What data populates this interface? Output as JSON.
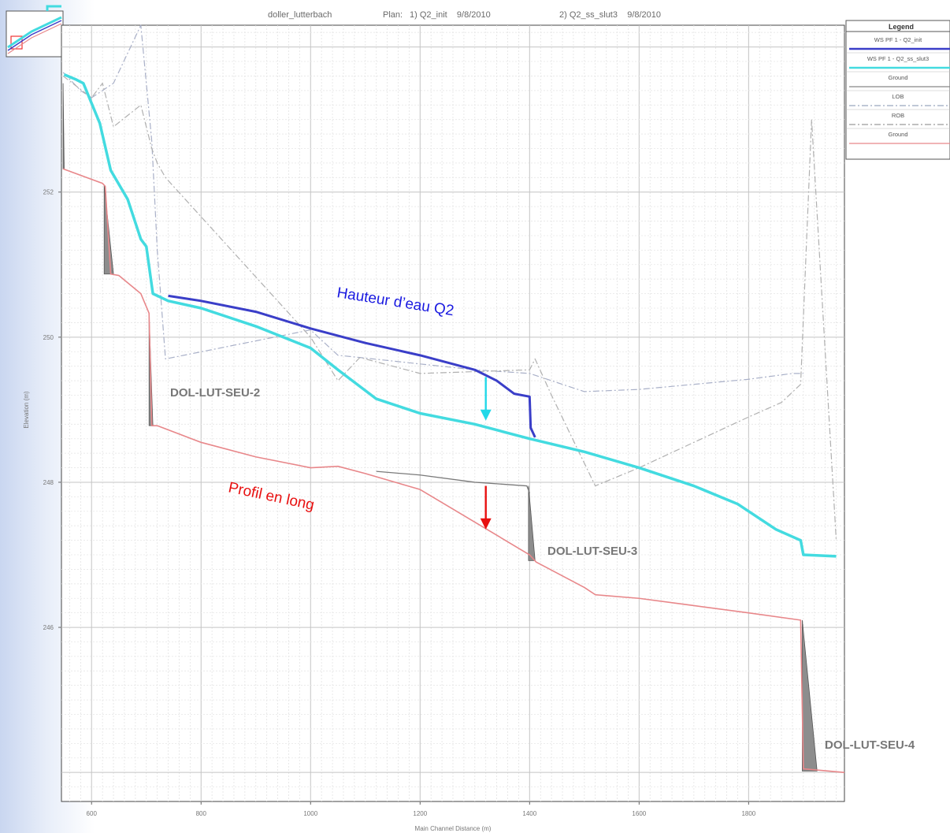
{
  "chart_data": {
    "type": "line",
    "title": {
      "project": "doller_lutterbach",
      "plan_label": "Plan:",
      "plan1": "1) Q2_init    9/8/2010",
      "plan2": "2) Q2_ss_slut3    9/8/2010"
    },
    "xlabel": "Main Channel Distance (m)",
    "ylabel": "Elevation (m)",
    "xlim": [
      545,
      1975
    ],
    "ylim": [
      243.6,
      254.3
    ],
    "x_ticks": [
      600,
      800,
      1000,
      1200,
      1400,
      1600,
      1800
    ],
    "y_ticks": [
      246,
      248,
      250,
      252
    ],
    "grid": true,
    "legend_position": "top-right",
    "legend": {
      "title": "Legend",
      "entries": [
        {
          "label": "WS  PF 1 - Q2_init",
          "color": "#3a3ec8",
          "style": "solid"
        },
        {
          "label": "WS  PF 1 - Q2_ss_slut3",
          "color": "#43dbe0",
          "style": "solid"
        },
        {
          "label": "Ground",
          "color": "#888888",
          "style": "solid"
        },
        {
          "label": "LOB",
          "color": "#9aa6bf",
          "style": "dashdot"
        },
        {
          "label": "ROB",
          "color": "#9a9a9a",
          "style": "dashdot"
        },
        {
          "label": "Ground",
          "color": "#e8878a",
          "style": "solid"
        }
      ]
    },
    "series": [
      {
        "name": "WS  PF 1 - Q2_init",
        "color": "#3a3ec8",
        "width": 3,
        "x": [
          740,
          800,
          900,
          1000,
          1100,
          1200,
          1300,
          1340,
          1372,
          1400,
          1402,
          1410
        ],
        "y": [
          250.57,
          250.5,
          250.35,
          250.12,
          249.92,
          249.75,
          249.55,
          249.4,
          249.22,
          249.18,
          248.75,
          248.62
        ]
      },
      {
        "name": "WS  PF 1 - Q2_ss_slut3",
        "color": "#43dbe0",
        "width": 3.5,
        "x": [
          550,
          572,
          585,
          615,
          635,
          666,
          690,
          700,
          712,
          740,
          800,
          900,
          1000,
          1050,
          1120,
          1200,
          1300,
          1350,
          1400,
          1500,
          1600,
          1700,
          1780,
          1850,
          1895,
          1900,
          1960
        ],
        "y": [
          253.62,
          253.55,
          253.5,
          252.95,
          252.3,
          251.9,
          251.35,
          251.25,
          250.6,
          250.5,
          250.4,
          250.15,
          249.85,
          249.55,
          249.15,
          248.95,
          248.8,
          248.7,
          248.6,
          248.42,
          248.2,
          247.95,
          247.7,
          247.35,
          247.2,
          247.0,
          246.98
        ]
      },
      {
        "name": "Ground",
        "color": "#e8878a",
        "width": 1.6,
        "x": [
          548,
          620,
          625,
          635,
          650,
          690,
          705,
          710,
          720,
          800,
          900,
          1000,
          1050,
          1100,
          1200,
          1300,
          1400,
          1412,
          1500,
          1520,
          1600,
          1700,
          1800,
          1895,
          1900,
          1945,
          1975
        ],
        "y": [
          252.32,
          252.12,
          252.08,
          250.87,
          250.85,
          250.6,
          250.33,
          248.78,
          248.78,
          248.55,
          248.35,
          248.2,
          248.22,
          248.12,
          247.9,
          247.45,
          247.0,
          246.9,
          246.55,
          246.45,
          246.4,
          246.3,
          246.2,
          246.1,
          244.05,
          244.02,
          244.0
        ]
      },
      {
        "name": "LOB",
        "color": "#a9b0c8",
        "width": 1.2,
        "dash": "8 3 2 3",
        "x": [
          548,
          580,
          600,
          640,
          690,
          710,
          720,
          735,
          1000,
          1050,
          1090,
          1300,
          1400,
          1500,
          1600,
          1700,
          1800,
          1880,
          1900
        ],
        "y": [
          253.65,
          253.4,
          253.3,
          253.5,
          254.3,
          252.7,
          251.2,
          249.7,
          250.1,
          249.75,
          249.72,
          249.55,
          249.5,
          249.25,
          249.28,
          249.35,
          249.42,
          249.5,
          249.5
        ]
      },
      {
        "name": "ROB",
        "color": "#b0b0b0",
        "width": 1.2,
        "dash": "8 3 2 3",
        "x": [
          548,
          600,
          620,
          640,
          690,
          710,
          720,
          735,
          1000,
          1050,
          1090,
          1200,
          1400,
          1410,
          1440,
          1520,
          1600,
          1700,
          1800,
          1860,
          1895,
          1915,
          1960
        ],
        "y": [
          253.6,
          253.3,
          253.5,
          252.9,
          253.2,
          252.6,
          252.4,
          252.2,
          250.0,
          249.4,
          249.72,
          249.5,
          249.55,
          249.7,
          249.2,
          247.95,
          248.2,
          248.55,
          248.9,
          249.1,
          249.35,
          253.0,
          247.2
        ]
      },
      {
        "name": "Ground",
        "color": "#7a7a7a",
        "width": 1.3,
        "x": [
          1120,
          1200,
          1300,
          1395,
          1400
        ],
        "y": [
          248.15,
          248.1,
          248.0,
          247.95,
          247.85
        ]
      }
    ],
    "structures": [
      {
        "label": "DOL-LUT-SEU-2",
        "x_top": 705,
        "y_top": 250.33,
        "x_bot": 712,
        "y_bot": 248.78
      },
      {
        "label": "DOL-LUT-SEU-3",
        "x_top": 1398,
        "y_top": 247.95,
        "x_bot": 1410,
        "y_bot": 246.92
      },
      {
        "label": "DOL-LUT-SEU-4",
        "x_top": 1898,
        "y_top": 246.1,
        "x_bot": 1925,
        "y_bot": 244.02
      }
    ],
    "small_drops": [
      {
        "x_top": 548,
        "y_top": 253.5,
        "x_bot": 550,
        "y_bot": 252.32
      },
      {
        "x_top": 623,
        "y_top": 252.1,
        "x_bot": 640,
        "y_bot": 250.87
      }
    ],
    "annotations": {
      "water": {
        "text": "Hauteur d’eau Q2",
        "color": "#1a1ae0"
      },
      "profile": {
        "text": "Profil en long",
        "color": "#e81010"
      },
      "arrows": [
        {
          "x": 1320,
          "y_from": 249.45,
          "y_to": 248.85,
          "color": "#22d8e8"
        },
        {
          "x": 1320,
          "y_from": 247.95,
          "y_to": 247.35,
          "color": "#e81010"
        }
      ]
    }
  }
}
